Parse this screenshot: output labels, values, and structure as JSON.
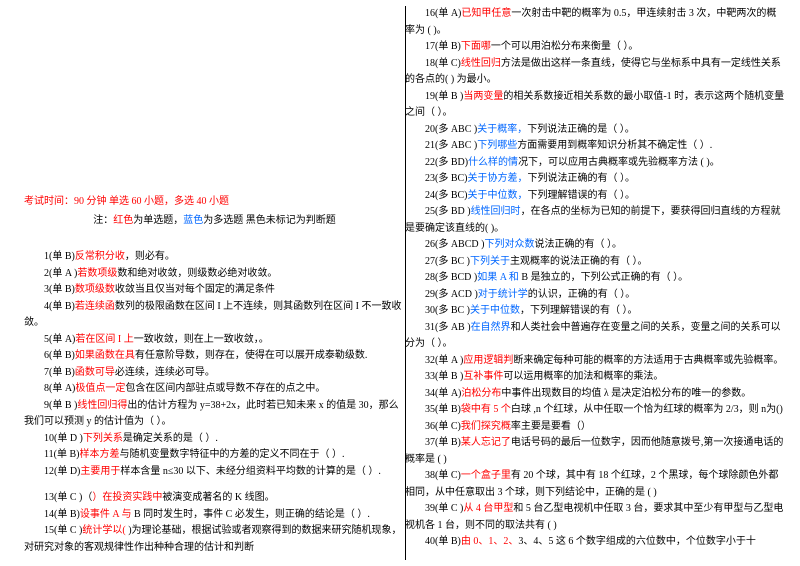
{
  "header": {
    "line1_prefix": "考试时间：90 分钟 单选 60 小题，多选 40 小题",
    "note_prefix": "注：",
    "note_red": "红色",
    "note_mid1": "为单选题，",
    "note_blue": "蓝色",
    "note_mid2": "为多选题 黑色未标记为判断题"
  },
  "q": {
    "1": {
      "pre": "1(单 B)",
      "hl": "反常积分收",
      "post": "，则必有。"
    },
    "2": {
      "pre": "2(单 A )",
      "hl": "若数项级",
      "post": "数和绝对收敛，则级数必绝对收敛。"
    },
    "3": {
      "pre": "3(单 B)",
      "hl": "数项级数",
      "post": "收敛当且仅当对每个固定的满足条件"
    },
    "4": {
      "pre": "4(单 B)",
      "hl": "若连续函",
      "post": "数列的极限函数在区间 I 上不连续，则其函数列在区间 I 不一致收敛。"
    },
    "5": {
      "pre": "5(单 A)",
      "hl": "若在区间 I 上",
      "post": "一致收敛，则在上一致收敛，。"
    },
    "6": {
      "pre": "6(单 B)",
      "hl": "如果函数在具",
      "post": "有任意阶导数，则存在，使得在可以展开成泰勒级数."
    },
    "7": {
      "pre": "7(单 B)",
      "hl": "函数可导",
      "post": "必连续，连续必可导。"
    },
    "8": {
      "pre": "8(单 A)",
      "hl": "极值点一定",
      "post": "包含在区间内部驻点或导数不存在的点之中。"
    },
    "9": {
      "pre": "9(单 B  )",
      "hl": "线性回归得",
      "post": "出的估计方程为 y=38+2x，此时若已知未来 x 的值是 30，那么我们可以预测 y 的估计值为（  ）。"
    },
    "10": {
      "pre": "10(单 D )",
      "hl": "下列关系",
      "post": "是确定关系的是（   ）."
    },
    "11": {
      "pre": "11(单  B)",
      "hl": "样本方差",
      "post": "与随机变量数字特征中的方差的定义不同在于（  ）."
    },
    "12": {
      "pre": "12(单 D)",
      "hl": "主要用于",
      "post": "样本含量 n≤30 以下、未经分组资料平均数的计算的是（   ）."
    },
    "13": {
      "pre": "13(单 C   )（",
      "hl": "）在投资实践中",
      "post": "被演变成著名的 K 线图。"
    },
    "14": {
      "pre": "14(单 B)",
      "hl": "设事件 A 与",
      "post": " B 同时发生时，事件 C 必发生，则正确的结论是（   ）."
    },
    "15": {
      "pre": "15(单 C )",
      "hl": "统计学以(",
      "post": "   )为理论基础，根据试验或者观察得到的数据来研究随机现象，对研究对象的客观规律性作出种种合理的估计和判断"
    },
    "16": {
      "pre": "16(单  A)",
      "hl": "已知甲任意",
      "post": "一次射击中靶的概率为 0.5，甲连续射击 3 次，中靶两次的概率为 (   )。"
    },
    "17": {
      "pre": "17(单 B)",
      "hl": "下面哪",
      "post": "一个可以用泊松分布来衡量（   ）。"
    },
    "18": {
      "pre": "18(单  C)",
      "hl": "线性回归",
      "post": "方法是做出这样一条直线，使得它与坐标系中具有一定线性关系的各点的(   ) 为最小。"
    },
    "19": {
      "pre": "19(单 B )",
      "hl": "当两变量",
      "post": "的相关系数接近相关系数的最小取值-1 时，表示这两个随机变量之间（   ）。"
    },
    "20": {
      "pre": "20(多 ABC )",
      "hl": "关于概率，",
      "post": "下列说法正确的是（   ）。"
    },
    "21": {
      "pre": "21(多 ABC )",
      "hl": "下列哪些",
      "post": "方面需要用到概率知识分析其不确定性（   ）."
    },
    "22": {
      "pre": "22(多 BD)",
      "hl": "什么样的情",
      "post": "况下，可以应用古典概率或先验概率方法 (   )。"
    },
    "23": {
      "pre": "23(多 BC)",
      "hl": "关于协方差，",
      "post": "下列说法正确的有（  ）。"
    },
    "24": {
      "pre": "24(多 BC)",
      "hl": "关于中位数，",
      "post": "下列理解错误的有（   ）。"
    },
    "25": {
      "pre": "25(多 BD  )",
      "hl": "线性回归时",
      "post": "，在各点的坐标为已知的前提下，要获得回归直线的方程就是要确定该直线的(   )。"
    },
    "26": {
      "pre": "26(多 ABCD )",
      "hl": "下列对众数",
      "post": "说法正确的有（  ）。"
    },
    "27": {
      "pre": "27(多 BC )",
      "hl": "下列关于",
      "post": "主观概率的说法正确的有（  ）。"
    },
    "28": {
      "pre": "28(多 BCD )",
      "hl": "如果 A 和",
      "post": " B 是独立的，下列公式正确的有（   ）。"
    },
    "29": {
      "pre": "29(多 ACD )",
      "hl": "对于统计学",
      "post": "的认识，正确的有（   ）。"
    },
    "30": {
      "pre": "30(多 BC )",
      "hl": "关于中位数",
      "post": "，下列理解错误的有（   ）。"
    },
    "31": {
      "pre": "31(多 AB  )",
      "hl": "在自然界",
      "post": "和人类社会中普遍存在变量之间的关系，变量之间的关系可以分为（   ）。"
    },
    "32": {
      "pre": "32(单 A )",
      "hl": "应用逻辑判",
      "post": "断来确定每种可能的概率的方法适用于古典概率或先验概率。"
    },
    "33": {
      "pre": "33(单 B )",
      "hl": "互补事件",
      "post": "可以运用概率的加法和概率的乘法。"
    },
    "34": {
      "pre": "34(单 A)",
      "hl": "泊松分布",
      "post": "中事件出现数目的均值 λ 是决定泊松分布的唯一的参数。"
    },
    "35": {
      "pre": "35(单 B)",
      "hl": "袋中有 5 个",
      "post": "白球 ,n 个红球，从中任取一个恰为红球的概率为 2/3，则 n为()"
    },
    "36": {
      "pre": "36(单 C)",
      "hl": "我们探究概",
      "post": "率主要是要看（）"
    },
    "37": {
      "pre": "37(单  B)",
      "hl": "某人忘记了",
      "post": "电话号码的最后一位数字，因而他随意拨号,第一次接通电话的概率是 (   )"
    },
    "38": {
      "pre": "38(单  C)",
      "hl": "一个盒子里",
      "post": "有 20 个球，其中有 18 个红球，2 个黑球，每个球除颜色外都相同，从中任意取出 3 个球，则下列结论中，正确的是 (   )"
    },
    "39": {
      "pre": "39(单 C  )",
      "hl": "从 4 台甲型",
      "post": "和 5 台乙型电视机中任取 3 台，要求其中至少有甲型与乙型电视机各 1 台，则不同的取法共有 (   )"
    },
    "40": {
      "pre": "40(单  B)",
      "hl": "由 0、1、2、",
      "post": "3、4、5 这 6 个数字组成的六位数中，个位数字小于十"
    }
  }
}
